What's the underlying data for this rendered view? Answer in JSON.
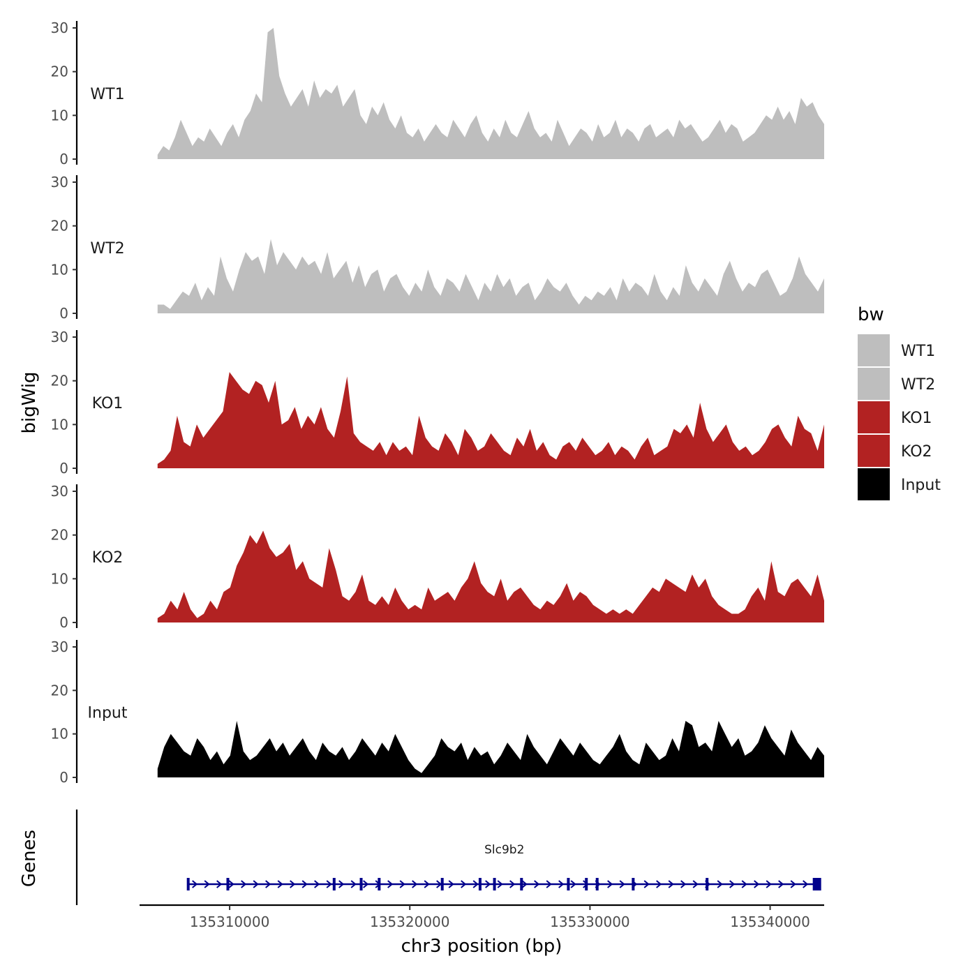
{
  "chart_data": {
    "type": "area",
    "y_axis_title": "bigWig",
    "genes_axis_title": "Genes",
    "x_axis_title": "chr3 position (bp)",
    "x_range": [
      135305000,
      135343000
    ],
    "data_range": [
      135306000,
      135343000
    ],
    "x_ticks": [
      135310000,
      135320000,
      135330000,
      135340000
    ],
    "x_tick_labels": [
      "135310000",
      "135320000",
      "135330000",
      "135340000"
    ],
    "ylim": [
      0,
      30
    ],
    "y_ticks": [
      0,
      10,
      20,
      30
    ],
    "y_tick_labels": [
      "0",
      "10",
      "20",
      "30"
    ],
    "legend": {
      "title": "bw",
      "entries": [
        {
          "label": "WT1",
          "color": "#bebebe"
        },
        {
          "label": "WT2",
          "color": "#bebebe"
        },
        {
          "label": "KO1",
          "color": "#b22222"
        },
        {
          "label": "KO2",
          "color": "#b22222"
        },
        {
          "label": "Input",
          "color": "#000000"
        }
      ]
    },
    "series": [
      {
        "name": "WT1",
        "color": "#bebebe",
        "values": [
          1,
          3,
          2,
          5,
          9,
          6,
          3,
          5,
          4,
          7,
          5,
          3,
          6,
          8,
          5,
          9,
          11,
          15,
          13,
          29,
          30,
          19,
          15,
          12,
          14,
          16,
          12,
          18,
          14,
          16,
          15,
          17,
          12,
          14,
          16,
          10,
          8,
          12,
          10,
          13,
          9,
          7,
          10,
          6,
          5,
          7,
          4,
          6,
          8,
          6,
          5,
          9,
          7,
          5,
          8,
          10,
          6,
          4,
          7,
          5,
          9,
          6,
          5,
          8,
          11,
          7,
          5,
          6,
          4,
          9,
          6,
          3,
          5,
          7,
          6,
          4,
          8,
          5,
          6,
          9,
          5,
          7,
          6,
          4,
          7,
          8,
          5,
          6,
          7,
          5,
          9,
          7,
          8,
          6,
          4,
          5,
          7,
          9,
          6,
          8,
          7,
          4,
          5,
          6,
          8,
          10,
          9,
          12,
          9,
          11,
          8,
          14,
          12,
          13,
          10,
          8
        ]
      },
      {
        "name": "WT2",
        "color": "#bebebe",
        "values": [
          2,
          2,
          1,
          3,
          5,
          4,
          7,
          3,
          6,
          4,
          13,
          8,
          5,
          10,
          14,
          12,
          13,
          9,
          17,
          11,
          14,
          12,
          10,
          13,
          11,
          12,
          9,
          14,
          8,
          10,
          12,
          7,
          11,
          6,
          9,
          10,
          5,
          8,
          9,
          6,
          4,
          7,
          5,
          10,
          6,
          4,
          8,
          7,
          5,
          9,
          6,
          3,
          7,
          5,
          9,
          6,
          8,
          4,
          6,
          7,
          3,
          5,
          8,
          6,
          5,
          7,
          4,
          2,
          4,
          3,
          5,
          4,
          6,
          3,
          8,
          5,
          7,
          6,
          4,
          9,
          5,
          3,
          6,
          4,
          11,
          7,
          5,
          8,
          6,
          4,
          9,
          12,
          8,
          5,
          7,
          6,
          9,
          10,
          7,
          4,
          5,
          8,
          13,
          9,
          7,
          5,
          8
        ],
        "_comment": "values read from the plot at evenly spaced positions across data_range"
      },
      {
        "name": "KO1",
        "color": "#b22222",
        "values": [
          1,
          2,
          4,
          12,
          6,
          5,
          10,
          7,
          9,
          11,
          13,
          22,
          20,
          18,
          17,
          20,
          19,
          15,
          20,
          10,
          11,
          14,
          9,
          12,
          10,
          14,
          9,
          7,
          13,
          21,
          8,
          6,
          5,
          4,
          6,
          3,
          6,
          4,
          5,
          3,
          12,
          7,
          5,
          4,
          8,
          6,
          3,
          9,
          7,
          4,
          5,
          8,
          6,
          4,
          3,
          7,
          5,
          9,
          4,
          6,
          3,
          2,
          5,
          6,
          4,
          7,
          5,
          3,
          4,
          6,
          3,
          5,
          4,
          2,
          5,
          7,
          3,
          4,
          5,
          9,
          8,
          10,
          7,
          15,
          9,
          6,
          8,
          10,
          6,
          4,
          5,
          3,
          4,
          6,
          9,
          10,
          7,
          5,
          12,
          9,
          8,
          4,
          10
        ]
      },
      {
        "name": "KO2",
        "color": "#b22222",
        "values": [
          1,
          2,
          5,
          3,
          7,
          3,
          1,
          2,
          5,
          3,
          7,
          8,
          13,
          16,
          20,
          18,
          21,
          17,
          15,
          16,
          18,
          12,
          14,
          10,
          9,
          8,
          17,
          12,
          6,
          5,
          7,
          11,
          5,
          4,
          6,
          4,
          8,
          5,
          3,
          4,
          3,
          8,
          5,
          6,
          7,
          5,
          8,
          10,
          14,
          9,
          7,
          6,
          10,
          5,
          7,
          8,
          6,
          4,
          3,
          5,
          4,
          6,
          9,
          5,
          7,
          6,
          4,
          3,
          2,
          3,
          2,
          3,
          2,
          4,
          6,
          8,
          7,
          10,
          9,
          8,
          7,
          11,
          8,
          10,
          6,
          4,
          3,
          2,
          2,
          3,
          6,
          8,
          5,
          14,
          7,
          6,
          9,
          10,
          8,
          6,
          11,
          5
        ]
      },
      {
        "name": "Input",
        "color": "#000000",
        "values": [
          2,
          7,
          10,
          8,
          6,
          5,
          9,
          7,
          4,
          6,
          3,
          5,
          13,
          6,
          4,
          5,
          7,
          9,
          6,
          8,
          5,
          7,
          9,
          6,
          4,
          8,
          6,
          5,
          7,
          4,
          6,
          9,
          7,
          5,
          8,
          6,
          10,
          7,
          4,
          2,
          1,
          3,
          5,
          9,
          7,
          6,
          8,
          4,
          7,
          5,
          6,
          3,
          5,
          8,
          6,
          4,
          10,
          7,
          5,
          3,
          6,
          9,
          7,
          5,
          8,
          6,
          4,
          3,
          5,
          7,
          10,
          6,
          4,
          3,
          8,
          6,
          4,
          5,
          9,
          6,
          13,
          12,
          7,
          8,
          6,
          13,
          10,
          7,
          9,
          5,
          6,
          8,
          12,
          9,
          7,
          5,
          11,
          8,
          6,
          4,
          7,
          5
        ]
      }
    ],
    "gene_track": {
      "gene_name": "Slc9b2",
      "strand": "+",
      "start": 135307700,
      "end": 135342800,
      "exon_positions": [
        135307700,
        135309900,
        135315800,
        135317300,
        135318300,
        135321800,
        135323900,
        135324700,
        135326200,
        135328800,
        135329800,
        135330400,
        135332400,
        135336500,
        135342600
      ]
    }
  }
}
